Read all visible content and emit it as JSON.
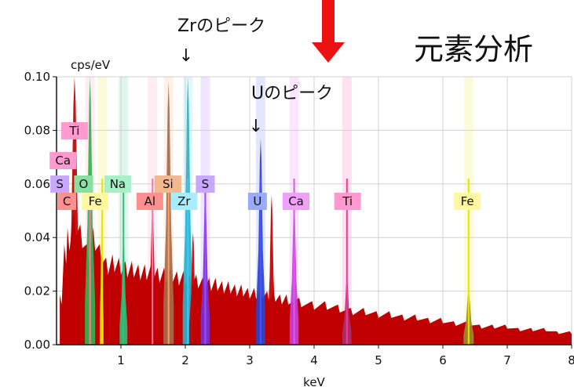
{
  "chart_data": {
    "type": "area",
    "title": "元素分析",
    "xlabel": "keV",
    "ylabel": "cps/eV",
    "xlim": [
      0,
      8
    ],
    "ylim": [
      0,
      0.1
    ],
    "x_ticks": [
      "1",
      "2",
      "3",
      "4",
      "5",
      "6",
      "7",
      "8"
    ],
    "y_ticks": [
      "0.00",
      "0.02",
      "0.04",
      "0.06",
      "0.08",
      "0.10"
    ],
    "grid": true,
    "annotations": [
      {
        "text": "Zrのピーク",
        "arrow": "↓",
        "x": 2.04
      },
      {
        "text": "Uのピーク",
        "arrow": "↓",
        "x": 3.17
      }
    ],
    "background_spectrum": {
      "x": [
        0.05,
        0.08,
        0.15,
        0.2,
        0.3,
        0.4,
        0.5,
        0.6,
        0.7,
        0.8,
        0.9,
        1.0,
        1.1,
        1.2,
        1.3,
        1.4,
        1.5,
        1.6,
        1.7,
        1.8,
        1.9,
        2.0,
        2.1,
        2.2,
        2.3,
        2.4,
        2.5,
        2.6,
        2.7,
        2.8,
        2.9,
        3.0,
        3.1,
        3.2,
        3.3,
        3.4,
        3.5,
        3.6,
        3.8,
        4.0,
        4.2,
        4.4,
        4.6,
        4.8,
        5.0,
        5.2,
        5.4,
        5.6,
        5.8,
        6.0,
        6.2,
        6.4,
        6.6,
        6.8,
        7.0,
        7.2,
        7.4,
        7.6,
        7.8,
        8.0
      ],
      "y": [
        0,
        0.015,
        0.03,
        0.035,
        0.04,
        0.036,
        0.03,
        0.035,
        0.03,
        0.026,
        0.027,
        0.026,
        0.025,
        0.025,
        0.024,
        0.024,
        0.024,
        0.023,
        0.023,
        0.023,
        0.022,
        0.022,
        0.021,
        0.021,
        0.02,
        0.02,
        0.02,
        0.019,
        0.019,
        0.018,
        0.018,
        0.017,
        0.017,
        0.017,
        0.016,
        0.016,
        0.015,
        0.015,
        0.014,
        0.013,
        0.013,
        0.012,
        0.011,
        0.011,
        0.01,
        0.01,
        0.009,
        0.009,
        0.008,
        0.008,
        0.007,
        0.007,
        0.006,
        0.006,
        0.006,
        0.005,
        0.005,
        0.005,
        0.004,
        0.004
      ]
    },
    "peaks": [
      {
        "element": "C",
        "x": 0.28,
        "y": 0.1,
        "width": 0.05,
        "color": "#c00000"
      },
      {
        "element": "O",
        "x": 0.52,
        "y": 0.1,
        "width": 0.04,
        "color": "#33b24a"
      },
      {
        "element": "Fe",
        "x": 0.7,
        "y": 0.05,
        "width": 0.015,
        "color": "#e8e400"
      },
      {
        "element": "Na",
        "x": 1.04,
        "y": 0.041,
        "width": 0.03,
        "color": "#2fbf7a"
      },
      {
        "element": "Al",
        "x": 1.49,
        "y": 0.051,
        "width": 0.035,
        "color": "#c00000"
      },
      {
        "element": "Si",
        "x": 1.74,
        "y": 0.098,
        "width": 0.04,
        "color": "#a86a4a"
      },
      {
        "element": "Zr",
        "x": 2.04,
        "y": 0.1,
        "width": 0.04,
        "color": "#2cb0c8"
      },
      {
        "element": "Zr-b",
        "x": 2.12,
        "y": 0.042,
        "width": 0.03,
        "color": "#c00000"
      },
      {
        "element": "S",
        "x": 2.31,
        "y": 0.057,
        "width": 0.035,
        "color": "#7a2fd1"
      },
      {
        "element": "U",
        "x": 3.17,
        "y": 0.077,
        "width": 0.035,
        "color": "#2a44cc"
      },
      {
        "element": "U-b",
        "x": 3.34,
        "y": 0.056,
        "width": 0.03,
        "color": "#c00000"
      },
      {
        "element": "Ca",
        "x": 3.69,
        "y": 0.053,
        "width": 0.035,
        "color": "#c43fd6"
      },
      {
        "element": "Ti",
        "x": 4.51,
        "y": 0.025,
        "width": 0.035,
        "color": "#a8306c"
      },
      {
        "element": "Fe",
        "x": 6.4,
        "y": 0.02,
        "width": 0.04,
        "color": "#9a8a2a"
      }
    ],
    "marker_lines": [
      {
        "x": 0.52,
        "color": "#ff77aa"
      },
      {
        "x": 0.71,
        "color": "#e8e400"
      },
      {
        "x": 1.04,
        "color": "#2fbf7a"
      },
      {
        "x": 1.49,
        "color": "#ff77aa"
      },
      {
        "x": 1.74,
        "color": "#f4a460"
      },
      {
        "x": 2.04,
        "color": "#33ccff"
      },
      {
        "x": 2.31,
        "color": "#9a4dff"
      },
      {
        "x": 3.17,
        "color": "#4455ff"
      },
      {
        "x": 3.69,
        "color": "#e055f0"
      },
      {
        "x": 4.51,
        "color": "#ff3399"
      },
      {
        "x": 6.4,
        "color": "#e8e400"
      }
    ],
    "element_labels": [
      {
        "text": "Ti",
        "row": 0,
        "x": 0.28,
        "color": "#ff9ad0"
      },
      {
        "text": "Ca",
        "row": 1,
        "x": 0.1,
        "color": "#ff9ad0"
      },
      {
        "text": "S",
        "row": 2,
        "x": 0.05,
        "color": "#c8a8ff"
      },
      {
        "text": "O",
        "row": 2,
        "x": 0.42,
        "color": "#88e0a0"
      },
      {
        "text": "Na",
        "row": 2,
        "x": 0.95,
        "color": "#a8f0c8"
      },
      {
        "text": "Si",
        "row": 2,
        "x": 1.73,
        "color": "#f4b890"
      },
      {
        "text": "S",
        "row": 2,
        "x": 2.31,
        "color": "#c8a8ff"
      },
      {
        "text": "C",
        "row": 3,
        "x": 0.16,
        "color": "#ff9090"
      },
      {
        "text": "Fe",
        "row": 3,
        "x": 0.6,
        "color": "#fff8a0"
      },
      {
        "text": "Al",
        "row": 3,
        "x": 1.45,
        "color": "#ff9090"
      },
      {
        "text": "Zr",
        "row": 3,
        "x": 1.98,
        "color": "#a8ecff"
      },
      {
        "text": "U",
        "row": 3,
        "x": 3.12,
        "color": "#99aaff"
      },
      {
        "text": "Ca",
        "row": 3,
        "x": 3.72,
        "color": "#f0a0f8"
      },
      {
        "text": "Ti",
        "row": 3,
        "x": 4.52,
        "color": "#ff9ad0"
      },
      {
        "text": "Fe",
        "row": 3,
        "x": 6.38,
        "color": "#fff8a0"
      }
    ],
    "overlay_arrow": {
      "color": "#ee1111"
    }
  }
}
